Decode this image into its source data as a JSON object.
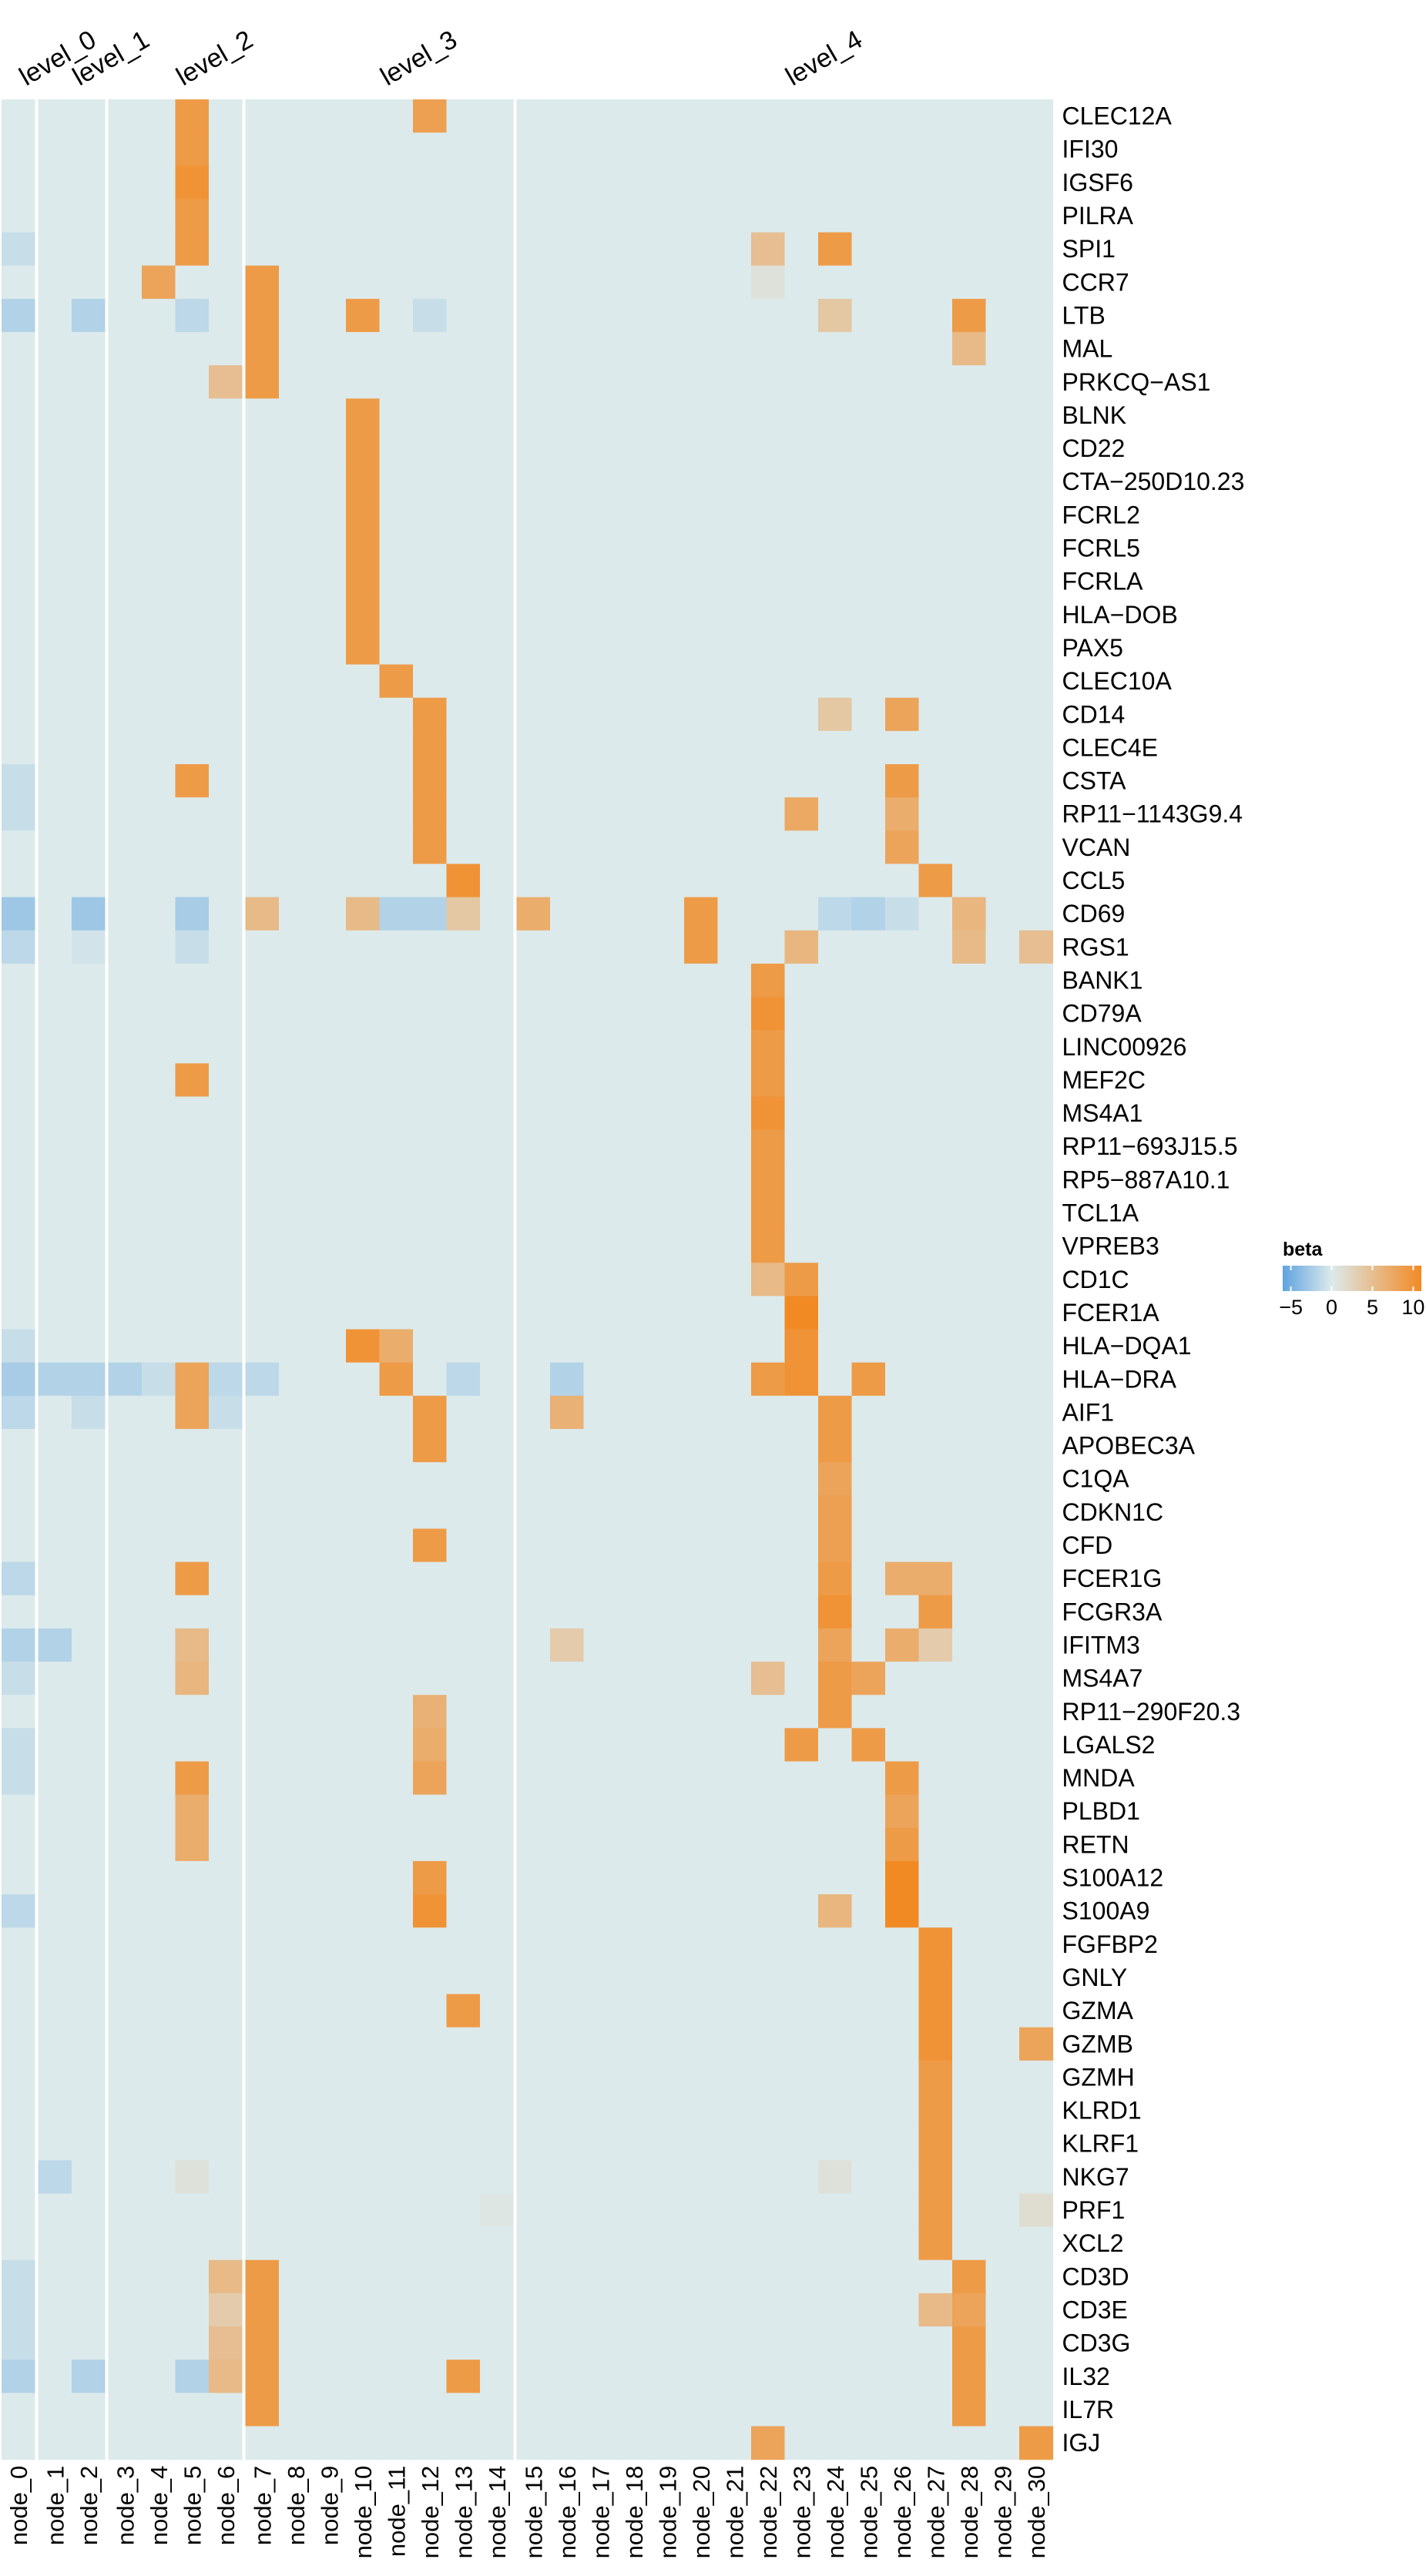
{
  "chart_data": {
    "type": "heatmap",
    "level_labels": [
      {
        "label": "level_0",
        "after_column": 0
      },
      {
        "label": "level_1",
        "after_column": 2
      },
      {
        "label": "level_2",
        "after_column": 6
      },
      {
        "label": "level_3",
        "after_column": 14
      },
      {
        "label": "level_4",
        "after_column": 30
      }
    ],
    "columns": [
      "node_0",
      "node_1",
      "node_2",
      "node_3",
      "node_4",
      "node_5",
      "node_6",
      "node_7",
      "node_8",
      "node_9",
      "node_10",
      "node_11",
      "node_12",
      "node_13",
      "node_14",
      "node_15",
      "node_16",
      "node_17",
      "node_18",
      "node_19",
      "node_20",
      "node_21",
      "node_22",
      "node_23",
      "node_24",
      "node_25",
      "node_26",
      "node_27",
      "node_28",
      "node_29",
      "node_30"
    ],
    "rows": [
      "CLEC12A",
      "IFI30",
      "IGSF6",
      "PILRA",
      "SPI1",
      "CCR7",
      "LTB",
      "MAL",
      "PRKCQ−AS1",
      "BLNK",
      "CD22",
      "CTA−250D10.23",
      "FCRL2",
      "FCRL5",
      "FCRLA",
      "HLA−DOB",
      "PAX5",
      "CLEC10A",
      "CD14",
      "CLEC4E",
      "CSTA",
      "RP11−1143G9.4",
      "VCAN",
      "CCL5",
      "CD69",
      "RGS1",
      "BANK1",
      "CD79A",
      "LINC00926",
      "MEF2C",
      "MS4A1",
      "RP11−693J15.5",
      "RP5−887A10.1",
      "TCL1A",
      "VPREB3",
      "CD1C",
      "FCER1A",
      "HLA−DQA1",
      "HLA−DRA",
      "AIF1",
      "APOBEC3A",
      "C1QA",
      "CDKN1C",
      "CFD",
      "FCER1G",
      "FCGR3A",
      "IFITM3",
      "MS4A7",
      "RP11−290F20.3",
      "LGALS2",
      "MNDA",
      "PLBD1",
      "RETN",
      "S100A12",
      "S100A9",
      "FGFBP2",
      "GNLY",
      "GZMA",
      "GZMB",
      "GZMH",
      "KLRD1",
      "KLRF1",
      "NKG7",
      "PRF1",
      "XCL2",
      "CD3D",
      "CD3E",
      "CD3G",
      "IL32",
      "IL7R",
      "IGJ"
    ],
    "cells": [
      [
        "CLEC12A",
        "node_5",
        9
      ],
      [
        "CLEC12A",
        "node_12",
        8.5
      ],
      [
        "IFI30",
        "node_5",
        9
      ],
      [
        "IGSF6",
        "node_5",
        10
      ],
      [
        "PILRA",
        "node_5",
        9
      ],
      [
        "SPI1",
        "node_0",
        -1
      ],
      [
        "SPI1",
        "node_5",
        9
      ],
      [
        "SPI1",
        "node_22",
        5
      ],
      [
        "SPI1",
        "node_24",
        9
      ],
      [
        "CCR7",
        "node_4",
        8
      ],
      [
        "CCR7",
        "node_7",
        9
      ],
      [
        "CCR7",
        "node_22",
        1
      ],
      [
        "LTB",
        "node_0",
        -2
      ],
      [
        "LTB",
        "node_2",
        -2
      ],
      [
        "LTB",
        "node_5",
        -1.5
      ],
      [
        "LTB",
        "node_7",
        9
      ],
      [
        "LTB",
        "node_10",
        9
      ],
      [
        "LTB",
        "node_12",
        -1
      ],
      [
        "LTB",
        "node_24",
        4
      ],
      [
        "LTB",
        "node_28",
        9
      ],
      [
        "MAL",
        "node_7",
        9
      ],
      [
        "MAL",
        "node_28",
        5.5
      ],
      [
        "PRKCQ−AS1",
        "node_6",
        5
      ],
      [
        "PRKCQ−AS1",
        "node_7",
        9
      ],
      [
        "BLNK",
        "node_10",
        9
      ],
      [
        "CD22",
        "node_10",
        9
      ],
      [
        "CTA−250D10.23",
        "node_10",
        9
      ],
      [
        "FCRL2",
        "node_10",
        9
      ],
      [
        "FCRL5",
        "node_10",
        9
      ],
      [
        "FCRLA",
        "node_10",
        9
      ],
      [
        "HLA−DOB",
        "node_10",
        9
      ],
      [
        "PAX5",
        "node_10",
        9
      ],
      [
        "CLEC10A",
        "node_11",
        9
      ],
      [
        "CD14",
        "node_12",
        9
      ],
      [
        "CD14",
        "node_24",
        4
      ],
      [
        "CD14",
        "node_26",
        8
      ],
      [
        "CLEC4E",
        "node_12",
        9
      ],
      [
        "CSTA",
        "node_0",
        -1
      ],
      [
        "CSTA",
        "node_5",
        9
      ],
      [
        "CSTA",
        "node_12",
        9
      ],
      [
        "CSTA",
        "node_26",
        9
      ],
      [
        "RP11−1143G9.4",
        "node_0",
        -1
      ],
      [
        "RP11−1143G9.4",
        "node_12",
        9
      ],
      [
        "RP11−1143G9.4",
        "node_23",
        7.5
      ],
      [
        "RP11−1143G9.4",
        "node_26",
        7
      ],
      [
        "VCAN",
        "node_12",
        9
      ],
      [
        "VCAN",
        "node_26",
        8
      ],
      [
        "CCL5",
        "node_13",
        10
      ],
      [
        "CCL5",
        "node_27",
        9
      ],
      [
        "CD69",
        "node_0",
        -3
      ],
      [
        "CD69",
        "node_2",
        -3
      ],
      [
        "CD69",
        "node_5",
        -2.5
      ],
      [
        "CD69",
        "node_7",
        5.5
      ],
      [
        "CD69",
        "node_10",
        5.5
      ],
      [
        "CD69",
        "node_11",
        -2
      ],
      [
        "CD69",
        "node_12",
        -2
      ],
      [
        "CD69",
        "node_13",
        4
      ],
      [
        "CD69",
        "node_15",
        7
      ],
      [
        "CD69",
        "node_20",
        9
      ],
      [
        "CD69",
        "node_24",
        -1.5
      ],
      [
        "CD69",
        "node_25",
        -2
      ],
      [
        "CD69",
        "node_26",
        -1
      ],
      [
        "CD69",
        "node_28",
        6
      ],
      [
        "RGS1",
        "node_0",
        -1.5
      ],
      [
        "RGS1",
        "node_2",
        -0.5
      ],
      [
        "RGS1",
        "node_5",
        -1
      ],
      [
        "RGS1",
        "node_20",
        9
      ],
      [
        "RGS1",
        "node_23",
        6
      ],
      [
        "RGS1",
        "node_28",
        5.5
      ],
      [
        "RGS1",
        "node_30",
        5
      ],
      [
        "BANK1",
        "node_22",
        9
      ],
      [
        "CD79A",
        "node_22",
        10
      ],
      [
        "LINC00926",
        "node_22",
        9
      ],
      [
        "MEF2C",
        "node_5",
        9
      ],
      [
        "MEF2C",
        "node_22",
        9
      ],
      [
        "MS4A1",
        "node_22",
        10
      ],
      [
        "RP11−693J15.5",
        "node_22",
        9
      ],
      [
        "RP5−887A10.1",
        "node_22",
        9
      ],
      [
        "TCL1A",
        "node_22",
        9
      ],
      [
        "VPREB3",
        "node_22",
        9
      ],
      [
        "CD1C",
        "node_22",
        5.5
      ],
      [
        "CD1C",
        "node_23",
        9
      ],
      [
        "FCER1A",
        "node_23",
        11
      ],
      [
        "HLA−DQA1",
        "node_0",
        -1
      ],
      [
        "HLA−DQA1",
        "node_10",
        10
      ],
      [
        "HLA−DQA1",
        "node_11",
        7
      ],
      [
        "HLA−DQA1",
        "node_23",
        10
      ],
      [
        "HLA−DRA",
        "node_0",
        -2.5
      ],
      [
        "HLA−DRA",
        "node_1",
        -2
      ],
      [
        "HLA−DRA",
        "node_2",
        -2
      ],
      [
        "HLA−DRA",
        "node_3",
        -2
      ],
      [
        "HLA−DRA",
        "node_4",
        -1
      ],
      [
        "HLA−DRA",
        "node_5",
        8
      ],
      [
        "HLA−DRA",
        "node_6",
        -1.5
      ],
      [
        "HLA−DRA",
        "node_7",
        -1.5
      ],
      [
        "HLA−DRA",
        "node_11",
        9
      ],
      [
        "HLA−DRA",
        "node_13",
        -1.5
      ],
      [
        "HLA−DRA",
        "node_16",
        -2
      ],
      [
        "HLA−DRA",
        "node_22",
        9
      ],
      [
        "HLA−DRA",
        "node_23",
        10
      ],
      [
        "HLA−DRA",
        "node_25",
        9
      ],
      [
        "AIF1",
        "node_0",
        -1.5
      ],
      [
        "AIF1",
        "node_2",
        -1
      ],
      [
        "AIF1",
        "node_5",
        8
      ],
      [
        "AIF1",
        "node_6",
        -1
      ],
      [
        "AIF1",
        "node_12",
        9
      ],
      [
        "AIF1",
        "node_16",
        6.5
      ],
      [
        "AIF1",
        "node_24",
        9
      ],
      [
        "APOBEC3A",
        "node_12",
        9
      ],
      [
        "APOBEC3A",
        "node_24",
        9
      ],
      [
        "C1QA",
        "node_24",
        8
      ],
      [
        "CDKN1C",
        "node_24",
        8.5
      ],
      [
        "CFD",
        "node_12",
        9
      ],
      [
        "CFD",
        "node_24",
        8.5
      ],
      [
        "FCER1G",
        "node_0",
        -1.5
      ],
      [
        "FCER1G",
        "node_5",
        9
      ],
      [
        "FCER1G",
        "node_24",
        9
      ],
      [
        "FCER1G",
        "node_26",
        7
      ],
      [
        "FCER1G",
        "node_27",
        7
      ],
      [
        "FCGR3A",
        "node_24",
        10
      ],
      [
        "FCGR3A",
        "node_27",
        9
      ],
      [
        "IFITM3",
        "node_0",
        -2
      ],
      [
        "IFITM3",
        "node_1",
        -2
      ],
      [
        "IFITM3",
        "node_5",
        5.5
      ],
      [
        "IFITM3",
        "node_16",
        3.5
      ],
      [
        "IFITM3",
        "node_24",
        8
      ],
      [
        "IFITM3",
        "node_26",
        7
      ],
      [
        "IFITM3",
        "node_27",
        3.5
      ],
      [
        "MS4A7",
        "node_0",
        -1
      ],
      [
        "MS4A7",
        "node_5",
        6
      ],
      [
        "MS4A7",
        "node_22",
        5
      ],
      [
        "MS4A7",
        "node_24",
        9
      ],
      [
        "MS4A7",
        "node_25",
        8
      ],
      [
        "RP11−290F20.3",
        "node_12",
        6.5
      ],
      [
        "RP11−290F20.3",
        "node_24",
        9
      ],
      [
        "LGALS2",
        "node_0",
        -1
      ],
      [
        "LGALS2",
        "node_12",
        7
      ],
      [
        "LGALS2",
        "node_23",
        9
      ],
      [
        "LGALS2",
        "node_25",
        9
      ],
      [
        "MNDA",
        "node_0",
        -1
      ],
      [
        "MNDA",
        "node_5",
        9
      ],
      [
        "MNDA",
        "node_12",
        8
      ],
      [
        "MNDA",
        "node_26",
        9
      ],
      [
        "PLBD1",
        "node_5",
        7
      ],
      [
        "PLBD1",
        "node_26",
        8
      ],
      [
        "RETN",
        "node_5",
        7
      ],
      [
        "RETN",
        "node_26",
        9
      ],
      [
        "S100A12",
        "node_12",
        9
      ],
      [
        "S100A12",
        "node_26",
        11
      ],
      [
        "S100A9",
        "node_0",
        -1.5
      ],
      [
        "S100A9",
        "node_12",
        10
      ],
      [
        "S100A9",
        "node_24",
        6
      ],
      [
        "S100A9",
        "node_26",
        11
      ],
      [
        "FGFBP2",
        "node_27",
        10
      ],
      [
        "GNLY",
        "node_27",
        10
      ],
      [
        "GZMA",
        "node_13",
        9
      ],
      [
        "GZMA",
        "node_27",
        10
      ],
      [
        "GZMB",
        "node_27",
        10
      ],
      [
        "GZMB",
        "node_30",
        8
      ],
      [
        "GZMH",
        "node_27",
        9
      ],
      [
        "KLRD1",
        "node_27",
        9
      ],
      [
        "KLRF1",
        "node_27",
        9
      ],
      [
        "NKG7",
        "node_1",
        -1.5
      ],
      [
        "NKG7",
        "node_5",
        1
      ],
      [
        "NKG7",
        "node_24",
        1
      ],
      [
        "NKG7",
        "node_27",
        9
      ],
      [
        "PRF1",
        "node_14",
        0.5
      ],
      [
        "PRF1",
        "node_27",
        9
      ],
      [
        "PRF1",
        "node_30",
        1.5
      ],
      [
        "XCL2",
        "node_27",
        9
      ],
      [
        "CD3D",
        "node_0",
        -1
      ],
      [
        "CD3D",
        "node_6",
        5.5
      ],
      [
        "CD3D",
        "node_7",
        9
      ],
      [
        "CD3D",
        "node_28",
        9
      ],
      [
        "CD3E",
        "node_0",
        -1
      ],
      [
        "CD3E",
        "node_6",
        3.5
      ],
      [
        "CD3E",
        "node_7",
        9
      ],
      [
        "CD3E",
        "node_27",
        5.5
      ],
      [
        "CD3E",
        "node_28",
        8
      ],
      [
        "CD3G",
        "node_0",
        -1
      ],
      [
        "CD3G",
        "node_6",
        5
      ],
      [
        "CD3G",
        "node_7",
        9
      ],
      [
        "CD3G",
        "node_28",
        9
      ],
      [
        "IL32",
        "node_0",
        -2
      ],
      [
        "IL32",
        "node_2",
        -2
      ],
      [
        "IL32",
        "node_5",
        -2
      ],
      [
        "IL32",
        "node_6",
        5.5
      ],
      [
        "IL32",
        "node_7",
        9
      ],
      [
        "IL32",
        "node_13",
        9
      ],
      [
        "IL32",
        "node_28",
        9
      ],
      [
        "IL7R",
        "node_7",
        9
      ],
      [
        "IL7R",
        "node_28",
        9
      ],
      [
        "IGJ",
        "node_22",
        8
      ],
      [
        "IGJ",
        "node_30",
        9
      ]
    ],
    "default_value": 0,
    "legend": {
      "title": "beta",
      "ticks": [
        -5,
        0,
        5,
        10
      ],
      "min": -6,
      "max": 11
    },
    "colors": {
      "low": "#5fa3e0",
      "mid": "#dceaeb",
      "high": "#f28a24",
      "separator": "#ffffff"
    }
  }
}
